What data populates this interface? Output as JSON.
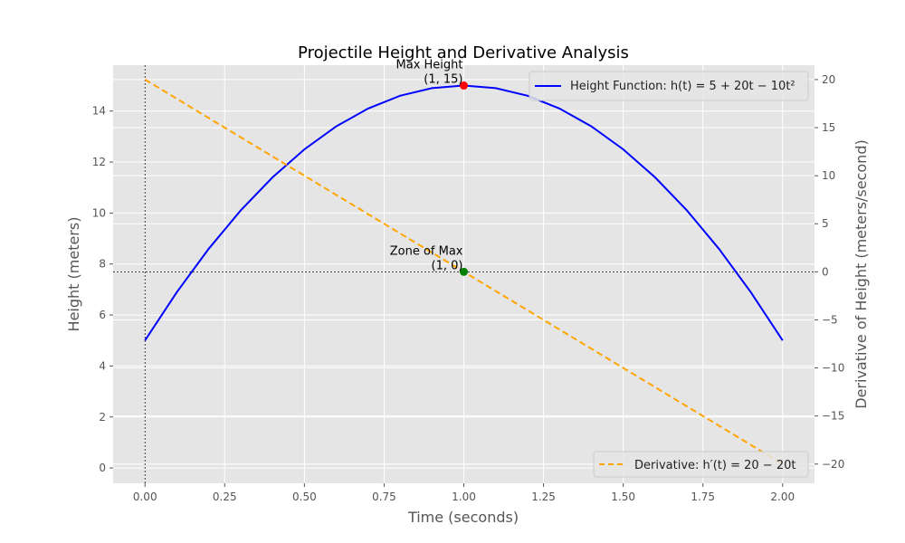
{
  "chart_data": {
    "type": "line",
    "title": "Projectile Height and Derivative Analysis",
    "xlabel": "Time (seconds)",
    "ylabel": "Height (meters)",
    "y2label": "Derivative of Height (meters/second)",
    "xlim": [
      -0.1,
      2.1
    ],
    "ylim": [
      -0.6,
      15.8
    ],
    "y2lim": [
      -22.0,
      21.5
    ],
    "xticks": [
      "0.00",
      "0.25",
      "0.50",
      "0.75",
      "1.00",
      "1.25",
      "1.50",
      "1.75",
      "2.00"
    ],
    "xtick_values": [
      0,
      0.25,
      0.5,
      0.75,
      1.0,
      1.25,
      1.5,
      1.75,
      2.0
    ],
    "yticks": [
      "0",
      "2",
      "4",
      "6",
      "8",
      "10",
      "12",
      "14"
    ],
    "ytick_values": [
      0,
      2,
      4,
      6,
      8,
      10,
      12,
      14
    ],
    "y2ticks": [
      "−20",
      "−15",
      "−10",
      "−5",
      "0",
      "5",
      "10",
      "15",
      "20"
    ],
    "y2tick_values": [
      -20,
      -15,
      -10,
      -5,
      0,
      5,
      10,
      15,
      20
    ],
    "grid": true,
    "series": [
      {
        "name": "Height Function: h(t) = 5 + 20t − 10t²",
        "axis": "left",
        "style": "solid",
        "color": "#0000ff",
        "x": [
          0,
          0.1,
          0.2,
          0.3,
          0.4,
          0.5,
          0.6,
          0.7,
          0.8,
          0.9,
          1.0,
          1.1,
          1.2,
          1.3,
          1.4,
          1.5,
          1.6,
          1.7,
          1.8,
          1.9,
          2.0
        ],
        "y": [
          5,
          6.9,
          8.6,
          10.1,
          11.4,
          12.5,
          13.4,
          14.1,
          14.6,
          14.9,
          15,
          14.9,
          14.6,
          14.1,
          13.4,
          12.5,
          11.4,
          10.1,
          8.6,
          6.9,
          5
        ]
      },
      {
        "name": "Derivative: h′(t) = 20 − 20t",
        "axis": "right",
        "style": "dashed",
        "color": "#ffa500",
        "x": [
          0,
          2.0
        ],
        "y": [
          20,
          -20
        ]
      }
    ],
    "annotations": [
      {
        "line1": "Max Height",
        "line2": "(1, 15)",
        "x": 1,
        "y": 15,
        "axis": "left",
        "color": "#ff0000"
      },
      {
        "line1": "Zone of Max",
        "line2": "(1, 0)",
        "x": 1,
        "y": 0,
        "axis": "right",
        "color": "#008000"
      }
    ],
    "reference_lines": {
      "vertical_x": 0,
      "horizontal_y2": 0
    },
    "legend_placement": [
      "upper right",
      "lower right"
    ]
  }
}
